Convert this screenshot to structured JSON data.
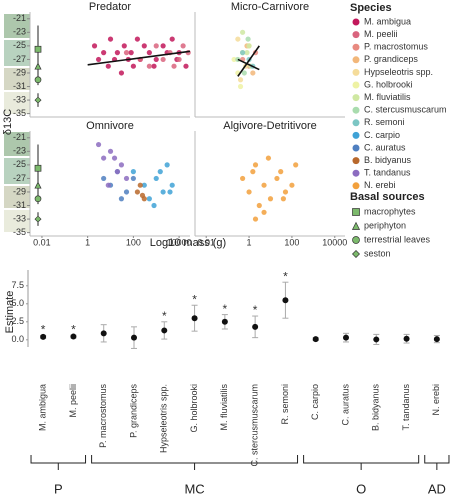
{
  "chart_data": [
    {
      "type": "facet-scatter",
      "x_label": "Log10 mass (g)",
      "y_label": "δ13C",
      "xlog": true,
      "xlim": [
        0.003,
        30000
      ],
      "xticks": [
        0.01,
        1,
        100,
        10000
      ],
      "ylim": [
        -35.5,
        -20
      ],
      "yticks": [
        -21,
        -23,
        -25,
        -27,
        -29,
        -31,
        -33,
        -35
      ],
      "legend_title": "Species",
      "legend_position": "right",
      "series": [
        {
          "name": "M. ambigua",
          "color": "#c2185b"
        },
        {
          "name": "M. peelii",
          "color": "#d9647e"
        },
        {
          "name": "P. macrostomus",
          "color": "#e88a80"
        },
        {
          "name": "P. grandiceps",
          "color": "#f2b77a"
        },
        {
          "name": "Hypseleotris spp.",
          "color": "#f5dc9a"
        },
        {
          "name": "G. holbrooki",
          "color": "#eef2a4"
        },
        {
          "name": "M. fluviatilis",
          "color": "#cfe8a2"
        },
        {
          "name": "C. stercusmuscarum",
          "color": "#a9dcae"
        },
        {
          "name": "R. semoni",
          "color": "#7cc6c4"
        },
        {
          "name": "C. carpio",
          "color": "#3fa2d6"
        },
        {
          "name": "C. auratus",
          "color": "#4f7fc0"
        },
        {
          "name": "B. bidyanus",
          "color": "#b8682c"
        },
        {
          "name": "T. tandanus",
          "color": "#8c6cc0"
        },
        {
          "name": "N. erebi",
          "color": "#f2a03c"
        }
      ],
      "basal_title": "Basal sources",
      "basal_sources": [
        {
          "name": "macrophytes",
          "shape": "square",
          "y": -25.5,
          "error": 3.5
        },
        {
          "name": "periphyton",
          "shape": "triangle",
          "y": -28,
          "error": 1.5
        },
        {
          "name": "terrestrial leaves",
          "shape": "circle",
          "y": -30,
          "error": 0.8
        },
        {
          "name": "seston",
          "shape": "diamond",
          "y": -33,
          "error": 1
        }
      ],
      "panels": [
        {
          "title": "Predator",
          "groups": [
            {
              "species": 0,
              "x": [
                2,
                3,
                5,
                8,
                10,
                15,
                20,
                30,
                40,
                60,
                80,
                100,
                150,
                200,
                300,
                500,
                800,
                1000,
                2000,
                3000,
                5000,
                8000,
                10000,
                20000
              ],
              "y": [
                -25,
                -27,
                -26,
                -28,
                -24,
                -27,
                -26,
                -29,
                -25,
                -27,
                -26,
                -28,
                -24,
                -27,
                -25,
                -26,
                -28,
                -27,
                -25,
                -26,
                -24,
                -27,
                -26,
                -28
              ]
            },
            {
              "species": 1,
              "x": [
                50,
                200,
                500,
                1000,
                2000,
                4000,
                6000,
                10000,
                15000,
                25000
              ],
              "y": [
                -26,
                -27,
                -28,
                -25,
                -27,
                -26,
                -28,
                -27,
                -25,
                -26
              ]
            }
          ],
          "trend_lines": [
            {
              "x": [
                1,
                30000
              ],
              "y": [
                -27.8,
                -25.8
              ]
            }
          ]
        },
        {
          "title": "Micro-Carnivore",
          "groups": [
            {
              "species": 2,
              "x": [
                0.5,
                1,
                2
              ],
              "y": [
                -27,
                -28,
                -26
              ]
            },
            {
              "species": 3,
              "x": [
                0.8,
                1.5
              ],
              "y": [
                -25,
                -29
              ]
            },
            {
              "species": 4,
              "x": [
                0.3,
                0.5,
                0.7,
                1,
                0.4
              ],
              "y": [
                -24,
                -26,
                -28,
                -25,
                -30
              ]
            },
            {
              "species": 5,
              "x": [
                0.2,
                0.3,
                0.5,
                0.4
              ],
              "y": [
                -27,
                -29,
                -26,
                -31
              ]
            },
            {
              "species": 6,
              "x": [
                0.5,
                0.8,
                1.2,
                1
              ],
              "y": [
                -23,
                -26,
                -28,
                -25
              ]
            },
            {
              "species": 7,
              "x": [
                0.3,
                0.6,
                0.9
              ],
              "y": [
                -27,
                -29,
                -24
              ]
            },
            {
              "species": 8,
              "x": [
                0.5,
                1,
                1.5
              ],
              "y": [
                -26,
                -27,
                -28
              ]
            }
          ],
          "trend_lines": [
            {
              "x": [
                0.3,
                3
              ],
              "y": [
                -29.5,
                -25
              ]
            },
            {
              "x": [
                0.3,
                3
              ],
              "y": [
                -27,
                -28.5
              ]
            }
          ]
        },
        {
          "title": "Omnivore",
          "groups": [
            {
              "species": 9,
              "x": [
                100,
                300,
                500,
                1000,
                2000,
                3000,
                5000,
                800,
                1500,
                4000
              ],
              "y": [
                -26,
                -28,
                -30,
                -27,
                -29,
                -25,
                -28,
                -31,
                -26,
                -29
              ]
            },
            {
              "species": 10,
              "x": [
                5,
                10,
                20,
                50,
                100,
                30
              ],
              "y": [
                -27,
                -28,
                -26,
                -29,
                -27,
                -30
              ]
            },
            {
              "species": 11,
              "x": [
                150,
                200,
                300,
                250
              ],
              "y": [
                -29,
                -28,
                -30,
                -29.5
              ]
            },
            {
              "species": 12,
              "x": [
                3,
                5,
                10,
                20,
                30,
                50,
                8,
                15
              ],
              "y": [
                -22,
                -24,
                -23,
                -26,
                -25,
                -27,
                -28,
                -24
              ]
            }
          ],
          "trend_lines": []
        },
        {
          "title": "Algivore-Detritivore",
          "groups": [
            {
              "species": 13,
              "x": [
                0.5,
                1,
                2,
                3,
                5,
                8,
                10,
                20,
                30,
                50,
                100,
                150,
                2,
                5,
                1.5,
                40
              ],
              "y": [
                -27,
                -29,
                -25,
                -31,
                -28,
                -24,
                -30,
                -27,
                -26,
                -29,
                -28,
                -25,
                -33,
                -32,
                -26,
                -30
              ]
            }
          ],
          "trend_lines": []
        }
      ]
    },
    {
      "type": "dot-error",
      "y_label": "Estimate",
      "categories": [
        "M. ambigua",
        "M. peelii",
        "P. macrostomus",
        "P. grandiceps",
        "Hypseleotris spp.",
        "G. holbrooki",
        "M. fluviatilis",
        "C. stercusmuscarum",
        "R. semoni",
        "C. carpio",
        "C. auratus",
        "B. bidyanus",
        "T. tandanus",
        "N. erebi"
      ],
      "values": [
        0.4,
        0.45,
        0.9,
        0.3,
        1.3,
        3.0,
        2.5,
        1.8,
        5.5,
        0.1,
        0.3,
        0.05,
        0.15,
        0.1
      ],
      "errors": [
        0.2,
        0.2,
        1.2,
        1.5,
        1.2,
        1.8,
        1.0,
        1.5,
        2.5,
        0.2,
        0.6,
        0.7,
        0.6,
        0.5
      ],
      "significance": [
        "*",
        "*",
        null,
        null,
        "*",
        "*",
        "*",
        "*",
        "*",
        null,
        null,
        null,
        null,
        null
      ],
      "ylim": [
        -1,
        9
      ],
      "yticks": [
        {
          "value": 0,
          "label": "0.0"
        },
        2.5,
        {
          "value": 5,
          "label": "5.0"
        },
        7.5
      ],
      "grid": false,
      "groups": [
        {
          "label": "P",
          "start": 0,
          "end": 1
        },
        {
          "label": "MC",
          "start": 2,
          "end": 8
        },
        {
          "label": "O",
          "start": 9,
          "end": 12
        },
        {
          "label": "AD",
          "start": 13,
          "end": 13
        }
      ]
    }
  ]
}
